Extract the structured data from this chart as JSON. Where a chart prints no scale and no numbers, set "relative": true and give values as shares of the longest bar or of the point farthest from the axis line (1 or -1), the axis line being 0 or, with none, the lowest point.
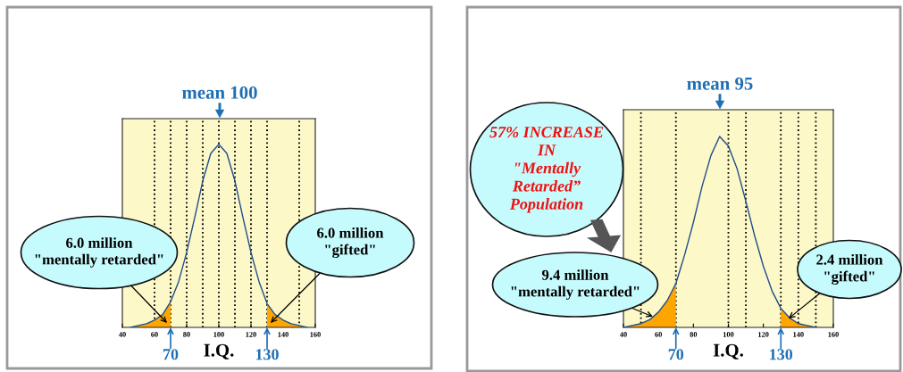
{
  "chart_data": [
    {
      "type": "line",
      "relative": true,
      "xlabel": "I.Q.",
      "xlim": [
        40,
        160
      ],
      "xticks": [
        40,
        60,
        80,
        100,
        120,
        140,
        160
      ],
      "tick_labels": "x",
      "grid": false,
      "series": [
        {
          "color": "#1f4e8c",
          "x": [
            45,
            50,
            55,
            60,
            65,
            70,
            75,
            80,
            85,
            90,
            95,
            100,
            105,
            110,
            115,
            120,
            125,
            130,
            135,
            140,
            145,
            150,
            155
          ],
          "values": [
            0,
            0.01,
            0.02,
            0.04,
            0.07,
            0.14,
            0.25,
            0.41,
            0.6,
            0.8,
            0.95,
            1,
            0.95,
            0.8,
            0.6,
            0.41,
            0.25,
            0.13,
            0.07,
            0.04,
            0.02,
            0.01,
            0
          ]
        },
        {
          "type": "area",
          "color": "#ffa500",
          "x": [
            45,
            50,
            55,
            60,
            65,
            70
          ],
          "values": [
            0,
            0.01,
            0.02,
            0.04,
            0.07,
            0.14
          ]
        },
        {
          "type": "area",
          "color": "#ffa500",
          "x": [
            130,
            135,
            140,
            145,
            150,
            155
          ],
          "values": [
            0.13,
            0.07,
            0.04,
            0.02,
            0.01,
            0
          ]
        }
      ],
      "ref_lines": [
        {
          "axis": "x",
          "value": 60,
          "line_style": "dotted",
          "color": "#000000"
        },
        {
          "axis": "x",
          "value": 70,
          "line_style": "dotted",
          "color": "#000000",
          "label": "70"
        },
        {
          "axis": "x",
          "value": 80,
          "line_style": "dotted",
          "color": "#000000"
        },
        {
          "axis": "x",
          "value": 90,
          "line_style": "dotted",
          "color": "#000000"
        },
        {
          "axis": "x",
          "value": 100,
          "line_style": "dotted",
          "color": "#000000"
        },
        {
          "axis": "x",
          "value": 110,
          "line_style": "dotted",
          "color": "#000000"
        },
        {
          "axis": "x",
          "value": 120,
          "line_style": "dotted",
          "color": "#000000"
        },
        {
          "axis": "x",
          "value": 130,
          "line_style": "dotted",
          "color": "#000000",
          "label": "130"
        },
        {
          "axis": "x",
          "value": 150,
          "line_style": "dotted",
          "color": "#000000"
        }
      ],
      "annotations": [
        "mean 100",
        "6.0 million\n\"mentally retarded\"",
        "6.0 million\n\"gifted\""
      ]
    },
    {
      "type": "line",
      "relative": true,
      "xlabel": "I.Q.",
      "xlim": [
        40,
        160
      ],
      "xticks": [
        40,
        60,
        80,
        100,
        120,
        140,
        160
      ],
      "tick_labels": "x",
      "grid": false,
      "series": [
        {
          "color": "#1f4e8c",
          "x": [
            40,
            45,
            50,
            55,
            60,
            65,
            70,
            75,
            80,
            85,
            90,
            95,
            100,
            105,
            110,
            115,
            120,
            125,
            130,
            135,
            140,
            145,
            150
          ],
          "values": [
            0,
            0.01,
            0.02,
            0.04,
            0.08,
            0.14,
            0.23,
            0.38,
            0.55,
            0.74,
            0.9,
            1,
            0.95,
            0.83,
            0.66,
            0.48,
            0.32,
            0.19,
            0.1,
            0.05,
            0.02,
            0.01,
            0
          ]
        },
        {
          "type": "area",
          "color": "#ffa500",
          "x": [
            40,
            45,
            50,
            55,
            60,
            65,
            70
          ],
          "values": [
            0,
            0.01,
            0.02,
            0.04,
            0.08,
            0.14,
            0.23
          ]
        },
        {
          "type": "area",
          "color": "#ffa500",
          "x": [
            130,
            135,
            140,
            145,
            150
          ],
          "values": [
            0.1,
            0.05,
            0.02,
            0.01,
            0
          ]
        }
      ],
      "ref_lines": [
        {
          "axis": "x",
          "value": 50,
          "line_style": "dotted",
          "color": "#000000"
        },
        {
          "axis": "x",
          "value": 70,
          "line_style": "dotted",
          "color": "#000000",
          "label": "70"
        },
        {
          "axis": "x",
          "value": 100,
          "line_style": "dotted",
          "color": "#000000"
        },
        {
          "axis": "x",
          "value": 110,
          "line_style": "dotted",
          "color": "#000000"
        },
        {
          "axis": "x",
          "value": 130,
          "line_style": "dotted",
          "color": "#000000",
          "label": "130"
        },
        {
          "axis": "x",
          "value": 140,
          "line_style": "dotted",
          "color": "#000000"
        },
        {
          "axis": "x",
          "value": 150,
          "line_style": "dotted",
          "color": "#000000"
        }
      ],
      "annotations": [
        "mean 95",
        "57% INCREASE\nIN\n\"Mentally\nRetarded”\nPopulation",
        "9.4 million\n\"mentally retarded\"",
        "2.4 million\n\"gifted\""
      ]
    }
  ]
}
